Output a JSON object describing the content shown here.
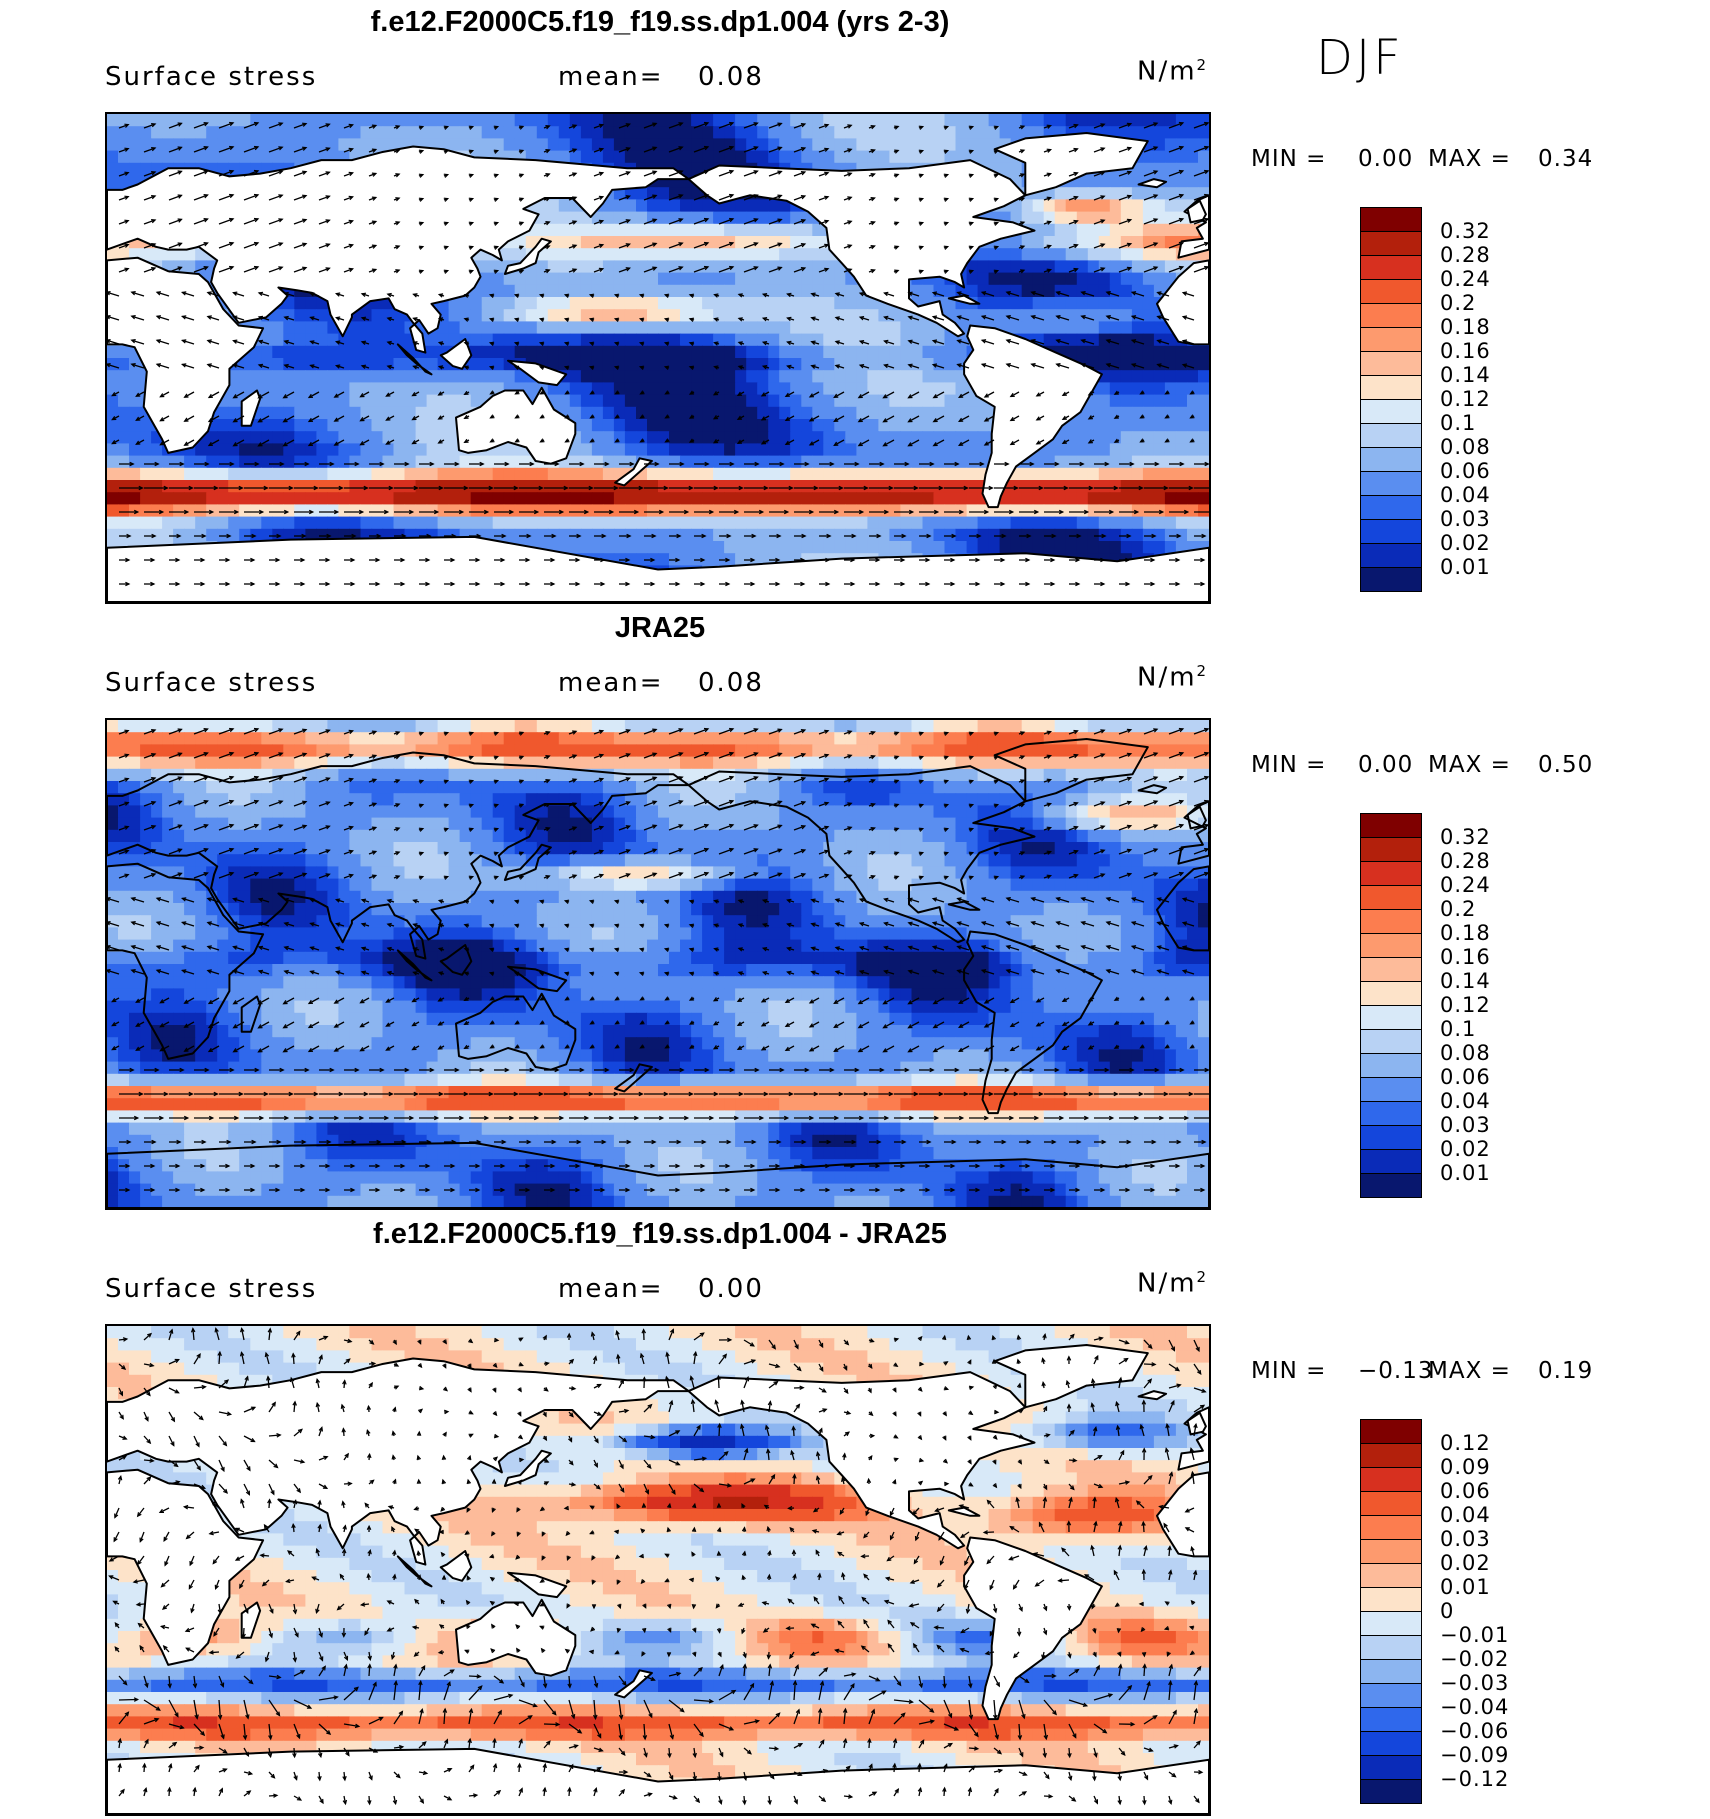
{
  "season": "DJF",
  "panels": [
    {
      "title": "f.e12.F2000C5.f19_f19.ss.dp1.004 (yrs 2-3)",
      "variable": "Surface stress",
      "mean_label": "mean=",
      "mean_value": "0.08",
      "units": "N/m",
      "units_sup": "2",
      "min_label": "MIN =",
      "min_value": "0.00",
      "max_label": "MAX =",
      "max_value": "0.34",
      "levels": [
        "0.32",
        "0.28",
        "0.24",
        "0.2",
        "0.18",
        "0.16",
        "0.14",
        "0.12",
        "0.1",
        "0.08",
        "0.06",
        "0.04",
        "0.03",
        "0.02",
        "0.01"
      ],
      "colors": [
        "#7f0000",
        "#b3200c",
        "#d7301f",
        "#f0582d",
        "#fc7d4f",
        "#fd9a6e",
        "#fdbb9a",
        "#fde3c9",
        "#d8e9f8",
        "#b8d2f4",
        "#8cb5f0",
        "#5a8ef0",
        "#2f68ec",
        "#1446dc",
        "#0a2bb8",
        "#08176e"
      ],
      "field": "model"
    },
    {
      "title": "JRA25",
      "variable": "Surface stress",
      "mean_label": "mean=",
      "mean_value": "0.08",
      "units": "N/m",
      "units_sup": "2",
      "min_label": "MIN =",
      "min_value": "0.00",
      "max_label": "MAX =",
      "max_value": "0.50",
      "levels": [
        "0.32",
        "0.28",
        "0.24",
        "0.2",
        "0.18",
        "0.16",
        "0.14",
        "0.12",
        "0.1",
        "0.08",
        "0.06",
        "0.04",
        "0.03",
        "0.02",
        "0.01"
      ],
      "colors": [
        "#7f0000",
        "#b3200c",
        "#d7301f",
        "#f0582d",
        "#fc7d4f",
        "#fd9a6e",
        "#fdbb9a",
        "#fde3c9",
        "#d8e9f8",
        "#b8d2f4",
        "#8cb5f0",
        "#5a8ef0",
        "#2f68ec",
        "#1446dc",
        "#0a2bb8",
        "#08176e"
      ],
      "field": "obs"
    },
    {
      "title": "f.e12.F2000C5.f19_f19.ss.dp1.004 - JRA25",
      "variable": "Surface stress",
      "mean_label": "mean=",
      "mean_value": "0.00",
      "units": "N/m",
      "units_sup": "2",
      "min_label": "MIN =",
      "min_value": "−0.13",
      "max_label": "MAX =",
      "max_value": "0.19",
      "levels": [
        "0.12",
        "0.09",
        "0.06",
        "0.04",
        "0.03",
        "0.02",
        "0.01",
        "0",
        "−0.01",
        "−0.02",
        "−0.03",
        "−0.04",
        "−0.06",
        "−0.09",
        "−0.12"
      ],
      "colors": [
        "#7f0000",
        "#b3200c",
        "#d7301f",
        "#f0582d",
        "#fc7d4f",
        "#fd9a6e",
        "#fdbb9a",
        "#fde3c9",
        "#d8e9f8",
        "#b8d2f4",
        "#8cb5f0",
        "#5a8ef0",
        "#2f68ec",
        "#1446dc",
        "#0a2bb8",
        "#08176e"
      ],
      "field": "diff"
    }
  ]
}
